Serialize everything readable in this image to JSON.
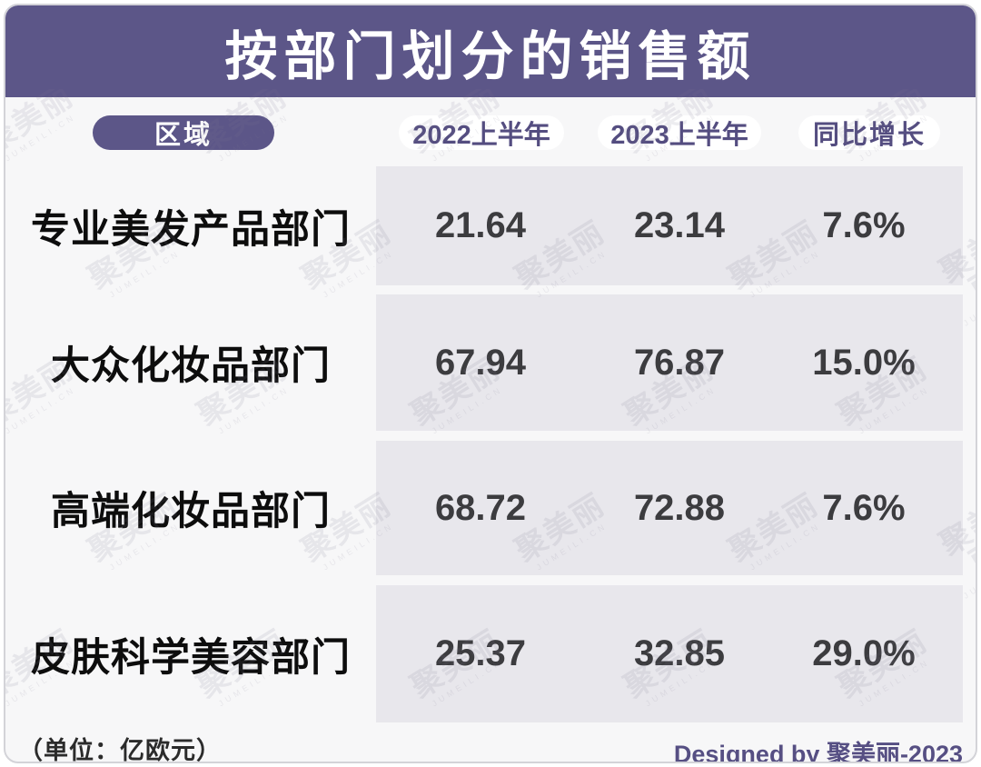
{
  "title": "按部门划分的销售额",
  "columns": {
    "region_label": "区域",
    "col_2022": "2022上半年",
    "col_2023": "2023上半年",
    "col_growth": "同比增长"
  },
  "rows": [
    {
      "label": "专业美发产品部门",
      "h1_2022": "21.64",
      "h1_2023": "23.14",
      "growth": "7.6%"
    },
    {
      "label": "大众化妆品部门",
      "h1_2022": "67.94",
      "h1_2023": "76.87",
      "growth": "15.0%"
    },
    {
      "label": "高端化妆品部门",
      "h1_2022": "68.72",
      "h1_2023": "72.88",
      "growth": "7.6%"
    },
    {
      "label": "皮肤科学美容部门",
      "h1_2022": "25.37",
      "h1_2023": "32.85",
      "growth": "29.0%"
    }
  ],
  "footer": {
    "unit_note": "（单位：亿欧元）",
    "credit": "Designed by 聚美丽-2023"
  },
  "watermark": {
    "text": "聚美丽",
    "subtext": "JUMEILI.CN"
  },
  "colors": {
    "header_purple": "#5c5688",
    "pill_text_purple": "#544d80",
    "band": "#e8e7ec",
    "card_bg": "#f7f7f8",
    "value_text": "#3c3c3f",
    "credit_purple": "#564f83"
  },
  "chart_data": {
    "type": "table",
    "title": "按部门划分的销售额",
    "columns": [
      "区域",
      "2022上半年",
      "2023上半年",
      "同比增长"
    ],
    "rows": [
      [
        "专业美发产品部门",
        21.64,
        23.14,
        "7.6%"
      ],
      [
        "大众化妆品部门",
        67.94,
        76.87,
        "15.0%"
      ],
      [
        "高端化妆品部门",
        68.72,
        72.88,
        "7.6%"
      ],
      [
        "皮肤科学美容部门",
        25.37,
        32.85,
        "29.0%"
      ]
    ],
    "unit": "亿欧元",
    "source_credit": "Designed by 聚美丽-2023"
  }
}
